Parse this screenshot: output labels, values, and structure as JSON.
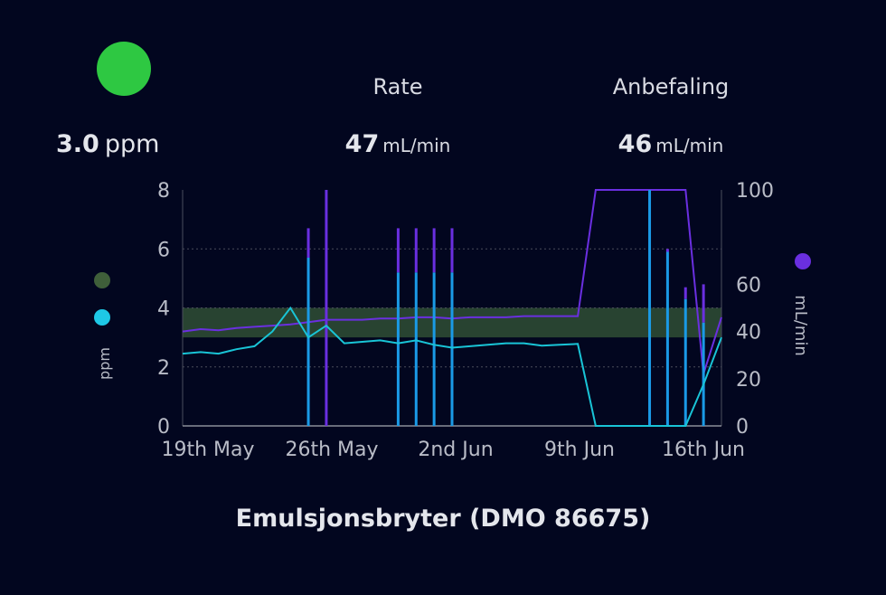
{
  "status": {
    "color": "#2ec842"
  },
  "metrics": {
    "ppm": {
      "value": "3.0",
      "unit": "ppm"
    },
    "rate": {
      "label": "Rate",
      "value": "47",
      "unit": "mL/min"
    },
    "recommendation": {
      "label": "Anbefaling",
      "value": "46",
      "unit": "mL/min"
    }
  },
  "colors": {
    "ppm_series": "#19c4d6",
    "rate_series": "#6a2fe0",
    "ppm_spike": "#1a9ae6",
    "band": "#2c4a33",
    "grid": "#4a4d5c",
    "axis_text": "#b9bcc7",
    "legend_green": "#3f5f3a",
    "legend_cyan": "#1ec8e6",
    "legend_purple": "#6a2fe0"
  },
  "chart_data": {
    "type": "line",
    "title": "Emulsjonsbryter (DMO 86675)",
    "x_ticks": [
      "19th May",
      "26th May",
      "2nd Jun",
      "9th Jun",
      "16th Jun"
    ],
    "x_range": [
      "2024-05-18",
      "2024-06-17"
    ],
    "y_left": {
      "label": "ppm",
      "range": [
        0,
        8
      ],
      "ticks": [
        "0",
        "2",
        "4",
        "6",
        "8"
      ]
    },
    "y_right": {
      "label": "mL/min",
      "range": [
        0,
        100
      ],
      "ticks": [
        "0",
        "20",
        "40",
        "60",
        "100"
      ]
    },
    "target_band_ppm": [
      3,
      4
    ],
    "grid": true,
    "series": [
      {
        "axis": "left",
        "points": [
          [
            "2024-05-18",
            2.45
          ],
          [
            "2024-05-19",
            2.5
          ],
          [
            "2024-05-20",
            2.45
          ],
          [
            "2024-05-21",
            2.6
          ],
          [
            "2024-05-22",
            2.7
          ],
          [
            "2024-05-23",
            3.2
          ],
          [
            "2024-05-24",
            4.0
          ],
          [
            "2024-05-25",
            3.0
          ],
          [
            "2024-05-26",
            3.4
          ],
          [
            "2024-05-27",
            2.8
          ],
          [
            "2024-05-28",
            2.85
          ],
          [
            "2024-05-29",
            2.9
          ],
          [
            "2024-05-30",
            2.8
          ],
          [
            "2024-05-31",
            2.9
          ],
          [
            "2024-06-01",
            2.75
          ],
          [
            "2024-06-02",
            2.65
          ],
          [
            "2024-06-03",
            2.7
          ],
          [
            "2024-06-04",
            2.75
          ],
          [
            "2024-06-05",
            2.8
          ],
          [
            "2024-06-06",
            2.8
          ],
          [
            "2024-06-07",
            2.72
          ],
          [
            "2024-06-08",
            2.75
          ],
          [
            "2024-06-09",
            2.78
          ],
          [
            "2024-06-10",
            0
          ],
          [
            "2024-06-11",
            0
          ],
          [
            "2024-06-12",
            0
          ],
          [
            "2024-06-13",
            0
          ],
          [
            "2024-06-14",
            0
          ],
          [
            "2024-06-15",
            0
          ],
          [
            "2024-06-16",
            1.4
          ],
          [
            "2024-06-17",
            3.0
          ]
        ]
      },
      {
        "axis": "right",
        "points": [
          [
            "2024-05-18",
            40
          ],
          [
            "2024-05-19",
            41
          ],
          [
            "2024-05-20",
            40.5
          ],
          [
            "2024-05-21",
            41.5
          ],
          [
            "2024-05-22",
            42
          ],
          [
            "2024-05-23",
            42.5
          ],
          [
            "2024-05-24",
            43
          ],
          [
            "2024-05-25",
            44
          ],
          [
            "2024-05-26",
            45
          ],
          [
            "2024-05-27",
            45
          ],
          [
            "2024-05-28",
            45
          ],
          [
            "2024-05-29",
            45.5
          ],
          [
            "2024-05-30",
            45.5
          ],
          [
            "2024-05-31",
            46
          ],
          [
            "2024-06-01",
            46
          ],
          [
            "2024-06-02",
            45.5
          ],
          [
            "2024-06-03",
            46
          ],
          [
            "2024-06-04",
            46
          ],
          [
            "2024-06-05",
            46
          ],
          [
            "2024-06-06",
            46.5
          ],
          [
            "2024-06-07",
            46.5
          ],
          [
            "2024-06-08",
            46.5
          ],
          [
            "2024-06-09",
            46.5
          ],
          [
            "2024-06-10",
            100
          ],
          [
            "2024-06-14",
            100
          ],
          [
            "2024-06-15",
            100
          ],
          [
            "2024-06-16",
            22
          ],
          [
            "2024-06-17",
            46
          ]
        ]
      }
    ],
    "spikes": [
      {
        "date": "2024-05-25",
        "ppm": 5.7,
        "rate_top": 6.7
      },
      {
        "date": "2024-05-26",
        "ppm": 0,
        "rate_top": 8
      },
      {
        "date": "2024-05-30",
        "ppm": 5.2,
        "rate_top": 6.7
      },
      {
        "date": "2024-05-31",
        "ppm": 5.2,
        "rate_top": 6.7
      },
      {
        "date": "2024-06-01",
        "ppm": 5.2,
        "rate_top": 6.7
      },
      {
        "date": "2024-06-02",
        "ppm": 5.2,
        "rate_top": 6.7
      },
      {
        "date": "2024-06-13",
        "ppm": 8,
        "rate_top": 8
      },
      {
        "date": "2024-06-14",
        "ppm": 5.9,
        "rate_top": 6.0
      },
      {
        "date": "2024-06-15",
        "ppm": 4.3,
        "rate_top": 4.7
      },
      {
        "date": "2024-06-16",
        "ppm": 3.5,
        "rate_top": 4.8
      }
    ]
  }
}
